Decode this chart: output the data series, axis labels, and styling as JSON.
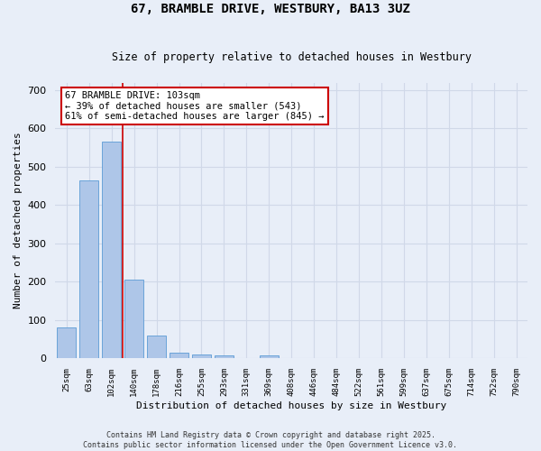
{
  "title": "67, BRAMBLE DRIVE, WESTBURY, BA13 3UZ",
  "subtitle": "Size of property relative to detached houses in Westbury",
  "xlabel": "Distribution of detached houses by size in Westbury",
  "ylabel": "Number of detached properties",
  "categories": [
    "25sqm",
    "63sqm",
    "102sqm",
    "140sqm",
    "178sqm",
    "216sqm",
    "255sqm",
    "293sqm",
    "331sqm",
    "369sqm",
    "408sqm",
    "446sqm",
    "484sqm",
    "522sqm",
    "561sqm",
    "599sqm",
    "637sqm",
    "675sqm",
    "714sqm",
    "752sqm",
    "790sqm"
  ],
  "values": [
    80,
    465,
    565,
    207,
    60,
    15,
    10,
    8,
    0,
    7,
    0,
    0,
    0,
    0,
    0,
    0,
    0,
    0,
    0,
    0,
    0
  ],
  "bar_color": "#aec6e8",
  "bar_edge_color": "#5b9bd5",
  "grid_color": "#d0d8e8",
  "background_color": "#e8eef8",
  "vline_color": "#cc0000",
  "vline_x_index": 2.5,
  "annotation_text": "67 BRAMBLE DRIVE: 103sqm\n← 39% of detached houses are smaller (543)\n61% of semi-detached houses are larger (845) →",
  "annotation_box_color": "#ffffff",
  "annotation_box_edge": "#cc0000",
  "ylim": [
    0,
    720
  ],
  "yticks": [
    0,
    100,
    200,
    300,
    400,
    500,
    600,
    700
  ],
  "footnote": "Contains HM Land Registry data © Crown copyright and database right 2025.\nContains public sector information licensed under the Open Government Licence v3.0."
}
